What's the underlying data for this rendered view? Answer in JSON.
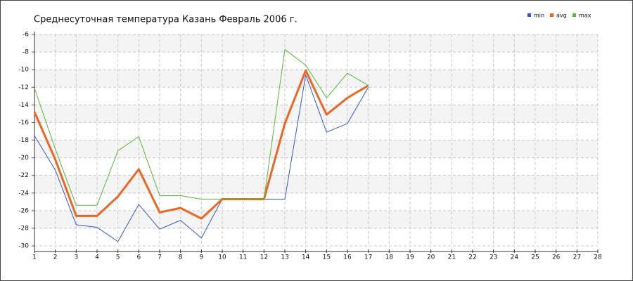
{
  "chart_data": {
    "type": "line",
    "title": "Среднесуточная температура Казань  Февраль 2006 г.",
    "x": [
      1,
      2,
      3,
      4,
      5,
      6,
      7,
      8,
      9,
      10,
      11,
      12,
      13,
      14,
      15,
      16,
      17
    ],
    "series": [
      {
        "name": "min",
        "color": "#3355dd",
        "values": [
          -17.5,
          -21.4,
          -27.6,
          -27.9,
          -29.5,
          -25.3,
          -28.1,
          -27.1,
          -29.1,
          -24.7,
          -24.7,
          -24.7,
          -24.7,
          -10.6,
          -17.1,
          -16.1,
          -12.0
        ]
      },
      {
        "name": "avg",
        "color": "#ee6622",
        "values": [
          -14.8,
          -20.2,
          -26.6,
          -26.6,
          -24.4,
          -21.3,
          -26.2,
          -25.7,
          -26.9,
          -24.7,
          -24.7,
          -24.7,
          -16.1,
          -10.1,
          -15.1,
          -13.2,
          -11.8
        ]
      },
      {
        "name": "max",
        "color": "#55bb33",
        "values": [
          -12.1,
          -19.0,
          -25.4,
          -25.4,
          -19.2,
          -17.6,
          -24.3,
          -24.3,
          -24.7,
          -24.7,
          -24.7,
          -24.7,
          -7.7,
          -9.5,
          -13.2,
          -10.4,
          -11.8
        ]
      }
    ],
    "xlim": [
      1,
      28
    ],
    "xticks": [
      1,
      2,
      3,
      4,
      5,
      6,
      7,
      8,
      9,
      10,
      11,
      12,
      13,
      14,
      15,
      16,
      17,
      18,
      19,
      20,
      21,
      22,
      23,
      24,
      25,
      26,
      27,
      28
    ],
    "ylim": [
      -30,
      -6
    ],
    "yticks": [
      -6,
      -8,
      -10,
      -12,
      -14,
      -16,
      -18,
      -20,
      -22,
      -24,
      -26,
      -28,
      -30
    ],
    "grid": true,
    "legend": "top-right"
  }
}
